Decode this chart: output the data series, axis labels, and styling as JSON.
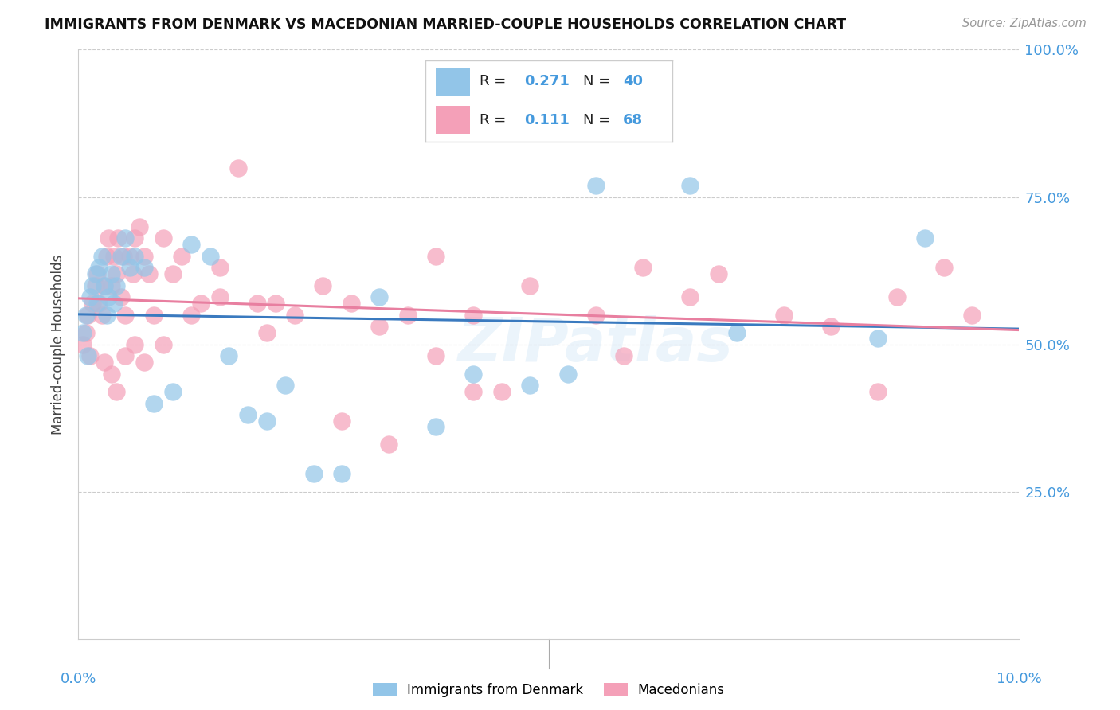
{
  "title": "IMMIGRANTS FROM DENMARK VS MACEDONIAN MARRIED-COUPLE HOUSEHOLDS CORRELATION CHART",
  "source": "Source: ZipAtlas.com",
  "ylabel": "Married-couple Households",
  "blue_color": "#92c5e8",
  "pink_color": "#f4a0b8",
  "line_blue": "#3a7abf",
  "line_pink": "#e87fa0",
  "watermark": "ZIPatlas",
  "blue_x": [
    0.05,
    0.08,
    0.1,
    0.12,
    0.15,
    0.18,
    0.2,
    0.22,
    0.25,
    0.28,
    0.3,
    0.32,
    0.35,
    0.38,
    0.4,
    0.45,
    0.5,
    0.55,
    0.6,
    0.7,
    0.8,
    1.0,
    1.2,
    1.4,
    1.6,
    1.8,
    2.0,
    2.2,
    2.5,
    2.8,
    3.2,
    3.8,
    4.2,
    4.8,
    5.2,
    5.5,
    6.5,
    7.0,
    8.5,
    9.0
  ],
  "blue_y": [
    52,
    55,
    48,
    58,
    60,
    62,
    57,
    63,
    65,
    60,
    55,
    58,
    62,
    57,
    60,
    65,
    68,
    63,
    65,
    63,
    40,
    42,
    67,
    65,
    48,
    38,
    37,
    43,
    28,
    28,
    58,
    36,
    45,
    43,
    45,
    77,
    77,
    52,
    51,
    68
  ],
  "pink_x": [
    0.05,
    0.08,
    0.1,
    0.12,
    0.15,
    0.18,
    0.2,
    0.22,
    0.25,
    0.28,
    0.3,
    0.32,
    0.35,
    0.38,
    0.4,
    0.42,
    0.45,
    0.48,
    0.5,
    0.55,
    0.58,
    0.6,
    0.65,
    0.7,
    0.75,
    0.8,
    0.9,
    1.0,
    1.1,
    1.2,
    1.3,
    1.5,
    1.7,
    1.9,
    2.1,
    2.3,
    2.6,
    2.9,
    3.2,
    3.5,
    3.8,
    4.2,
    4.8,
    5.5,
    6.0,
    6.5,
    7.5,
    8.0,
    8.7,
    9.2,
    0.28,
    0.35,
    0.4,
    0.5,
    0.6,
    0.7,
    0.9,
    1.5,
    2.0,
    2.8,
    3.3,
    4.5,
    5.8,
    6.8,
    8.5,
    9.5,
    3.8,
    4.2
  ],
  "pink_y": [
    50,
    52,
    55,
    48,
    57,
    60,
    62,
    57,
    55,
    60,
    65,
    68,
    60,
    65,
    62,
    68,
    58,
    65,
    55,
    65,
    62,
    68,
    70,
    65,
    62,
    55,
    68,
    62,
    65,
    55,
    57,
    63,
    80,
    57,
    57,
    55,
    60,
    57,
    53,
    55,
    48,
    55,
    60,
    55,
    63,
    58,
    55,
    53,
    58,
    63,
    47,
    45,
    42,
    48,
    50,
    47,
    50,
    58,
    52,
    37,
    33,
    42,
    48,
    62,
    42,
    55,
    65,
    42
  ]
}
